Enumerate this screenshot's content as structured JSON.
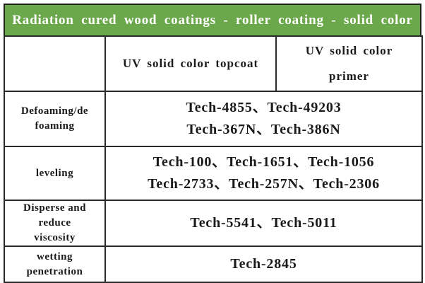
{
  "title": "Radiation cured wood coatings - roller coating - solid color",
  "colors": {
    "banner_background": "#6BA84B",
    "banner_text": "#FFFFFF",
    "border": "#2A2A2A",
    "cell_text": "#1A1A1A"
  },
  "table": {
    "columns": {
      "corner": "",
      "topcoat": "UV solid color topcoat",
      "primer": "UV solid color primer"
    },
    "rows": [
      {
        "label": "Defoaming/de foaming",
        "label_lines": [
          "Defoaming/de",
          "foaming"
        ],
        "value_lines": [
          "Tech-4855、Tech-49203",
          "Tech-367N、Tech-386N"
        ]
      },
      {
        "label": "leveling",
        "label_lines": [
          "leveling"
        ],
        "value_lines": [
          "Tech-100、Tech-1651、Tech-1056",
          "Tech-2733、Tech-257N、Tech-2306"
        ]
      },
      {
        "label": "Disperse and reduce viscosity",
        "label_lines": [
          "Disperse and",
          "reduce",
          "viscosity"
        ],
        "value_lines": [
          "Tech-5541、Tech-5011"
        ]
      },
      {
        "label": "wetting penetration",
        "label_lines": [
          "wetting",
          "penetration"
        ],
        "value_lines": [
          "Tech-2845"
        ]
      }
    ]
  }
}
